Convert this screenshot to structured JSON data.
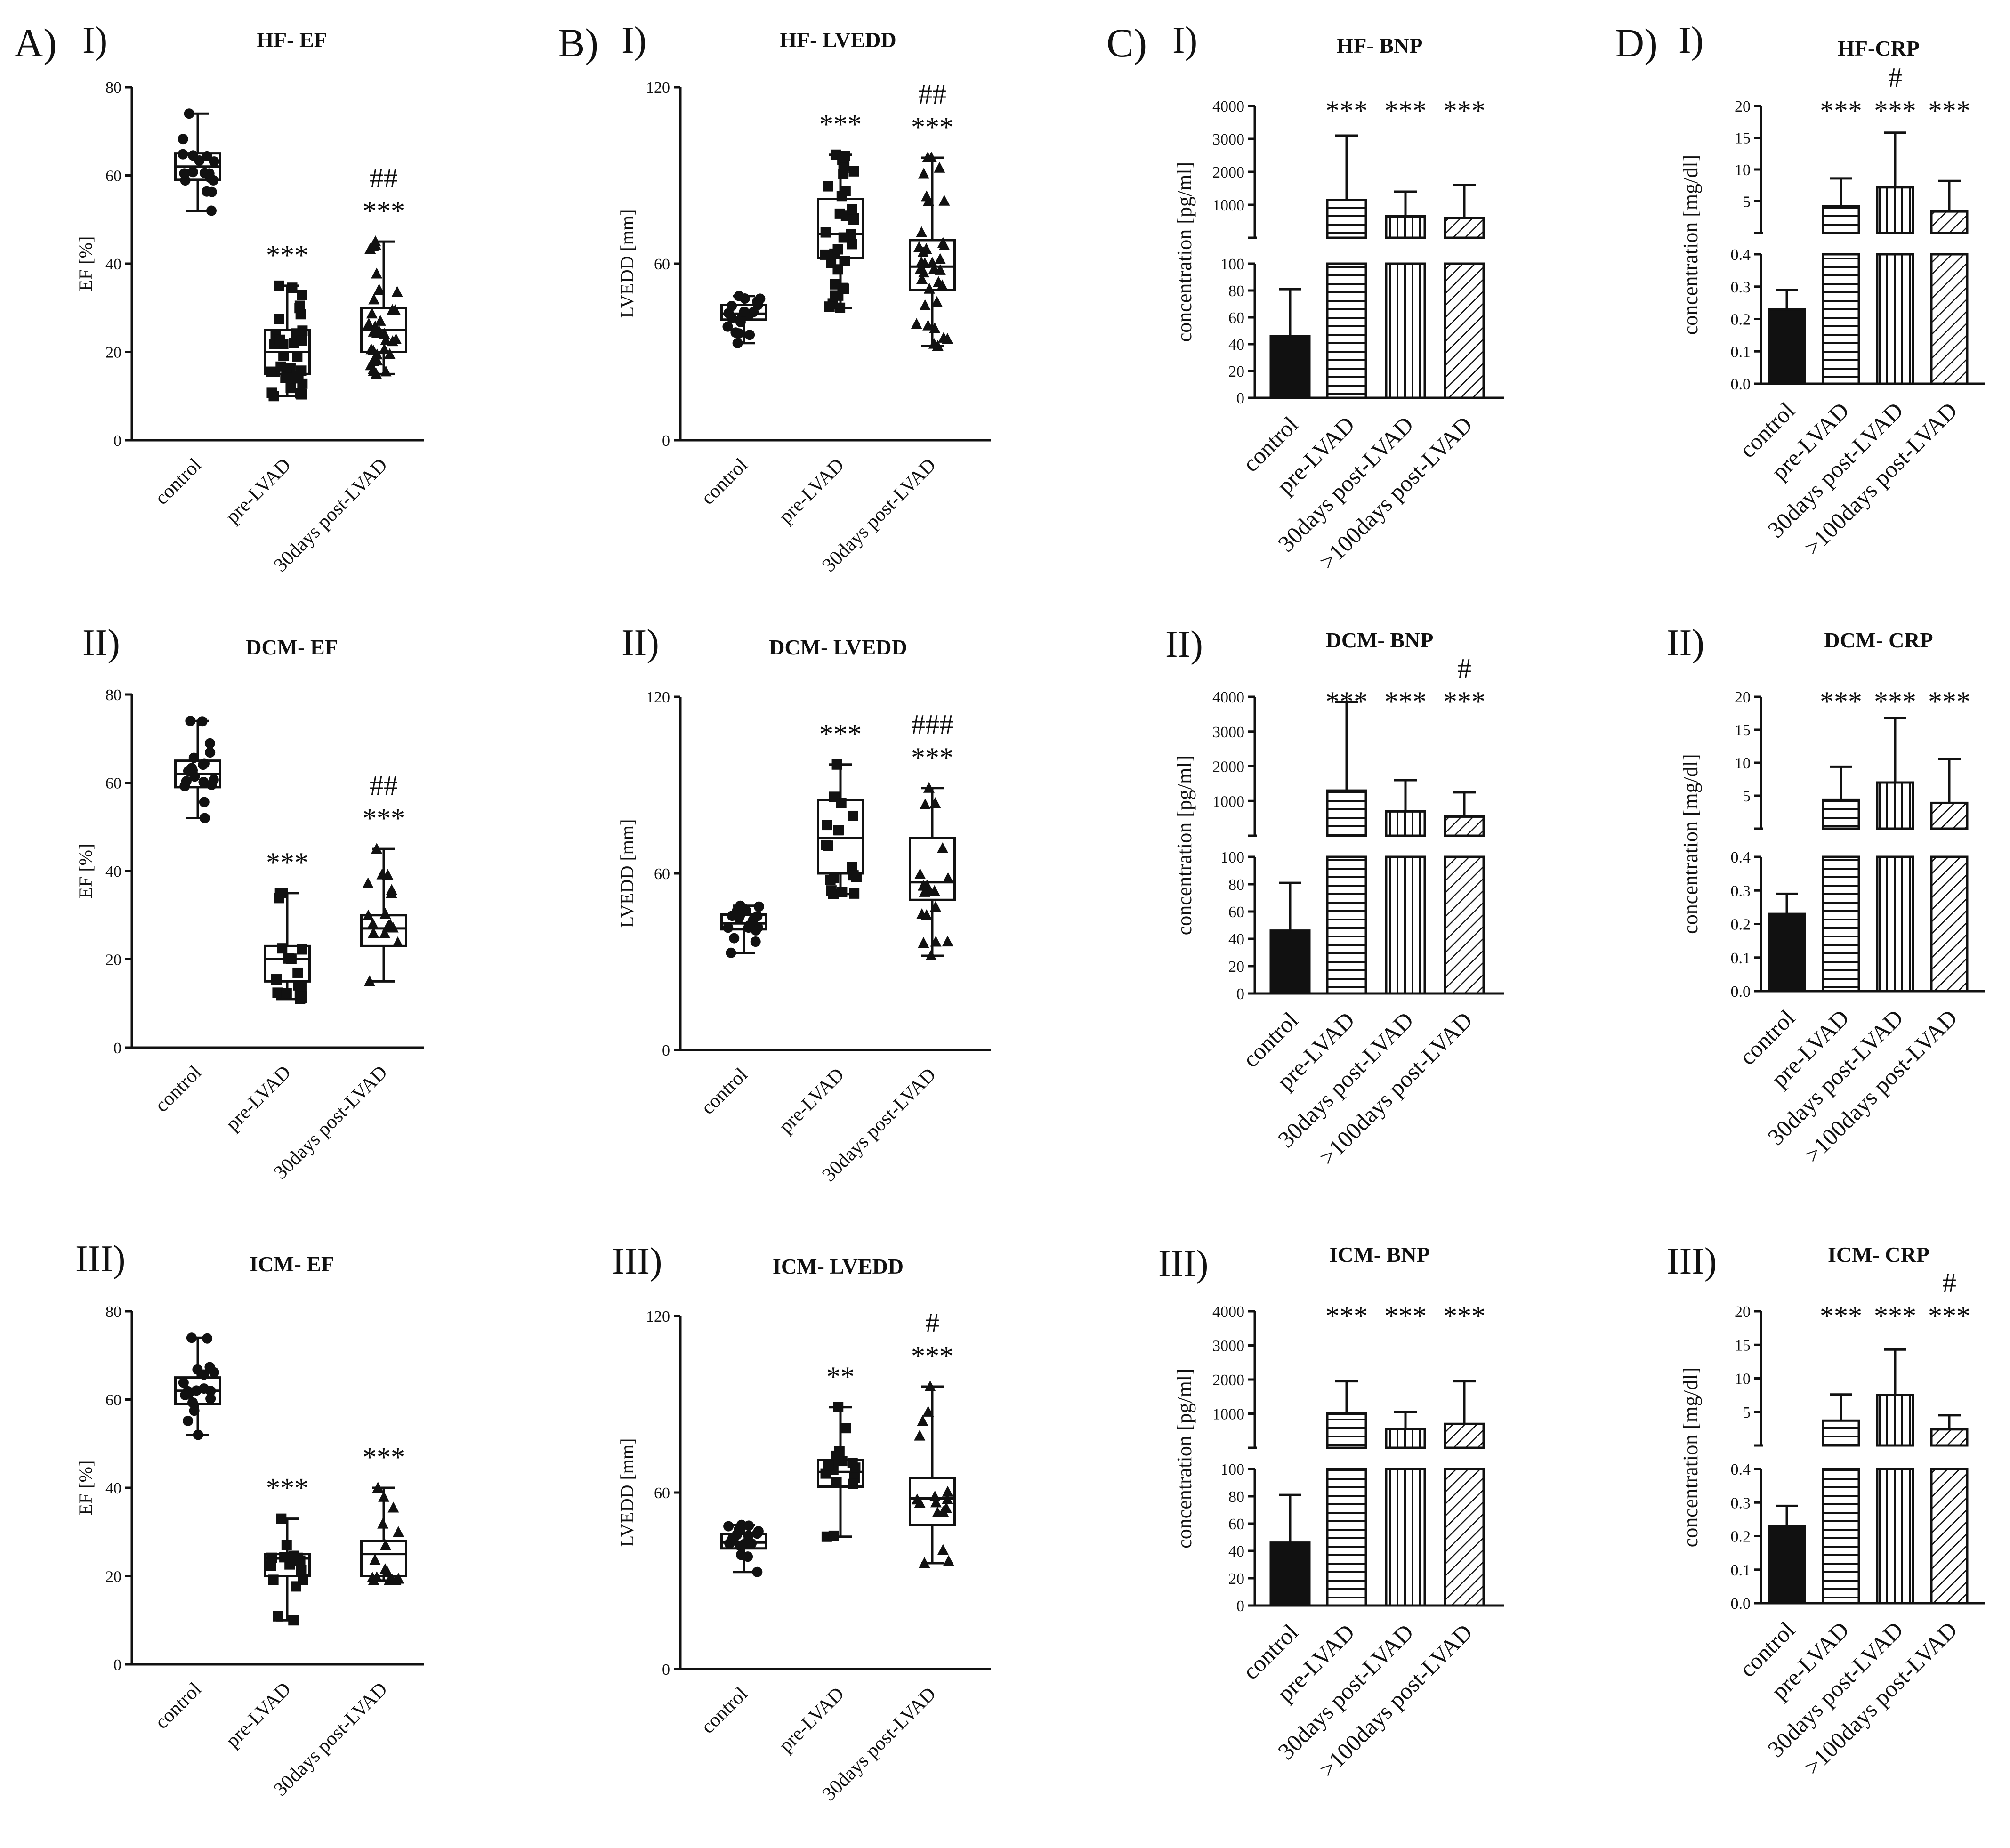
{
  "figure": {
    "panel_letters": [
      "A)",
      "B)",
      "C)",
      "D)"
    ],
    "x_categories_box": [
      "control",
      "pre-LVAD",
      "30days post-LVAD"
    ],
    "x_categories_bar": [
      "control",
      "pre-LVAD",
      "30days post-LVAD",
      ">100days post-LVAD"
    ]
  },
  "chart_data": [
    {
      "id": "A1",
      "type": "box",
      "panel": "A)",
      "roman": "I)",
      "title": "HF- EF",
      "ylabel": "EF [%]",
      "ylim": [
        0,
        80
      ],
      "yticks": [
        "0",
        "20",
        "40",
        "60",
        "80"
      ],
      "categories": [
        "control",
        "pre-LVAD",
        "30days post-LVAD"
      ],
      "series": [
        {
          "min": 52,
          "q1": 59,
          "median": 62,
          "q3": 65,
          "max": 74,
          "marker": "circle",
          "n": 18,
          "sig": "",
          "hash": ""
        },
        {
          "min": 10,
          "q1": 15,
          "median": 20,
          "q3": 25,
          "max": 35,
          "marker": "square",
          "n": 34,
          "sig": "***",
          "hash": ""
        },
        {
          "min": 15,
          "q1": 20,
          "median": 25,
          "q3": 30,
          "max": 45,
          "marker": "triangle",
          "n": 34,
          "sig": "***",
          "hash": "##"
        }
      ]
    },
    {
      "id": "A2",
      "type": "box",
      "panel": "",
      "roman": "II)",
      "title": "DCM- EF",
      "ylabel": "EF [%]",
      "ylim": [
        0,
        80
      ],
      "yticks": [
        "0",
        "20",
        "40",
        "60",
        "80"
      ],
      "categories": [
        "control",
        "pre-LVAD",
        "30days post-LVAD"
      ],
      "series": [
        {
          "min": 52,
          "q1": 59,
          "median": 62,
          "q3": 65,
          "max": 74,
          "marker": "circle",
          "n": 18,
          "sig": "",
          "hash": ""
        },
        {
          "min": 11,
          "q1": 15,
          "median": 20,
          "q3": 23,
          "max": 35,
          "marker": "square",
          "n": 18,
          "sig": "***",
          "hash": ""
        },
        {
          "min": 15,
          "q1": 23,
          "median": 27,
          "q3": 30,
          "max": 45,
          "marker": "triangle",
          "n": 18,
          "sig": "***",
          "hash": "##"
        }
      ]
    },
    {
      "id": "A3",
      "type": "box",
      "panel": "",
      "roman": "III)",
      "title": "ICM- EF",
      "ylabel": "EF [%]",
      "ylim": [
        0,
        80
      ],
      "yticks": [
        "0",
        "20",
        "40",
        "60",
        "80"
      ],
      "categories": [
        "control",
        "pre-LVAD",
        "30days post-LVAD"
      ],
      "series": [
        {
          "min": 52,
          "q1": 59,
          "median": 62,
          "q3": 65,
          "max": 74,
          "marker": "circle",
          "n": 18,
          "sig": "",
          "hash": ""
        },
        {
          "min": 10,
          "q1": 20,
          "median": 24,
          "q3": 25,
          "max": 33,
          "marker": "square",
          "n": 16,
          "sig": "***",
          "hash": ""
        },
        {
          "min": 19,
          "q1": 20,
          "median": 25,
          "q3": 28,
          "max": 40,
          "marker": "triangle",
          "n": 16,
          "sig": "***",
          "hash": ""
        }
      ]
    },
    {
      "id": "B1",
      "type": "box",
      "panel": "B)",
      "roman": "I)",
      "title": "HF- LVEDD",
      "ylabel": "LVEDD [mm]",
      "ylim": [
        0,
        120
      ],
      "yticks": [
        "0",
        "60",
        "120"
      ],
      "categories": [
        "control",
        "pre-LVAD",
        "30days post-LVAD"
      ],
      "series": [
        {
          "min": 33,
          "q1": 41,
          "median": 43,
          "q3": 46,
          "max": 49,
          "marker": "circle",
          "n": 18,
          "sig": "",
          "hash": ""
        },
        {
          "min": 45,
          "q1": 62,
          "median": 70,
          "q3": 82,
          "max": 97,
          "marker": "square",
          "n": 34,
          "sig": "***",
          "hash": ""
        },
        {
          "min": 32,
          "q1": 51,
          "median": 59,
          "q3": 68,
          "max": 96,
          "marker": "triangle",
          "n": 34,
          "sig": "***",
          "hash": "##"
        }
      ]
    },
    {
      "id": "B2",
      "type": "box",
      "panel": "",
      "roman": "II)",
      "title": "DCM- LVEDD",
      "ylabel": "LVEDD [mm]",
      "ylim": [
        0,
        120
      ],
      "yticks": [
        "0",
        "60",
        "120"
      ],
      "categories": [
        "control",
        "pre-LVAD",
        "30days post-LVAD"
      ],
      "series": [
        {
          "min": 33,
          "q1": 41,
          "median": 43,
          "q3": 46,
          "max": 49,
          "marker": "circle",
          "n": 18,
          "sig": "",
          "hash": ""
        },
        {
          "min": 53,
          "q1": 60,
          "median": 72,
          "q3": 85,
          "max": 97,
          "marker": "square",
          "n": 18,
          "sig": "***",
          "hash": ""
        },
        {
          "min": 32,
          "q1": 51,
          "median": 57,
          "q3": 72,
          "max": 89,
          "marker": "triangle",
          "n": 18,
          "sig": "***",
          "hash": "###"
        }
      ]
    },
    {
      "id": "B3",
      "type": "box",
      "panel": "",
      "roman": "III)",
      "title": "ICM- LVEDD",
      "ylabel": "LVEDD [mm]",
      "ylim": [
        0,
        120
      ],
      "yticks": [
        "0",
        "60",
        "120"
      ],
      "categories": [
        "control",
        "pre-LVAD",
        "30days post-LVAD"
      ],
      "series": [
        {
          "min": 33,
          "q1": 41,
          "median": 43,
          "q3": 46,
          "max": 49,
          "marker": "circle",
          "n": 18,
          "sig": "",
          "hash": ""
        },
        {
          "min": 45,
          "q1": 62,
          "median": 67,
          "q3": 71,
          "max": 89,
          "marker": "square",
          "n": 16,
          "sig": "**",
          "hash": ""
        },
        {
          "min": 36,
          "q1": 49,
          "median": 58,
          "q3": 65,
          "max": 96,
          "marker": "triangle",
          "n": 16,
          "sig": "***",
          "hash": "#"
        }
      ]
    },
    {
      "id": "C1",
      "type": "bar",
      "panel": "C)",
      "roman": "I)",
      "title": "HF- BNP",
      "ylabel": "concentration [pg/ml]",
      "lower": {
        "ylim": [
          0,
          100
        ],
        "yticks": [
          "0",
          "20",
          "40",
          "60",
          "80",
          "100"
        ]
      },
      "upper": {
        "ylim": [
          0,
          4000
        ],
        "yticks": [
          "1000",
          "2000",
          "3000",
          "4000"
        ]
      },
      "categories": [
        "control",
        "pre-LVAD",
        "30days post-LVAD",
        ">100days post-LVAD"
      ],
      "values": [
        46,
        1150,
        650,
        600
      ],
      "errors": [
        81,
        3100,
        1400,
        1600
      ],
      "fills": [
        "solid",
        "horizontal",
        "vertical",
        "diagonal"
      ],
      "sig": [
        "",
        "***",
        "***",
        "***"
      ],
      "hash": [
        "",
        "",
        "",
        ""
      ]
    },
    {
      "id": "C2",
      "type": "bar",
      "panel": "",
      "roman": "II)",
      "title": "DCM- BNP",
      "ylabel": "concentration [pg/ml]",
      "lower": {
        "ylim": [
          0,
          100
        ],
        "yticks": [
          "0",
          "20",
          "40",
          "60",
          "80",
          "100"
        ]
      },
      "upper": {
        "ylim": [
          0,
          4000
        ],
        "yticks": [
          "1000",
          "2000",
          "3000",
          "4000"
        ]
      },
      "categories": [
        "control",
        "pre-LVAD",
        "30days post-LVAD",
        ">100days post-LVAD"
      ],
      "values": [
        46,
        1300,
        700,
        550
      ],
      "errors": [
        81,
        3850,
        1600,
        1250
      ],
      "fills": [
        "solid",
        "horizontal",
        "vertical",
        "diagonal"
      ],
      "sig": [
        "",
        "***",
        "***",
        "***"
      ],
      "hash": [
        "",
        "",
        "",
        "#"
      ]
    },
    {
      "id": "C3",
      "type": "bar",
      "panel": "",
      "roman": "III)",
      "title": "ICM- BNP",
      "ylabel": "concentration [pg/ml]",
      "lower": {
        "ylim": [
          0,
          100
        ],
        "yticks": [
          "0",
          "20",
          "40",
          "60",
          "80",
          "100"
        ]
      },
      "upper": {
        "ylim": [
          0,
          4000
        ],
        "yticks": [
          "1000",
          "2000",
          "3000",
          "4000"
        ]
      },
      "categories": [
        "control",
        "pre-LVAD",
        "30days post-LVAD",
        ">100days post-LVAD"
      ],
      "values": [
        46,
        1000,
        550,
        700
      ],
      "errors": [
        81,
        1950,
        1050,
        1950
      ],
      "fills": [
        "solid",
        "horizontal",
        "vertical",
        "diagonal"
      ],
      "sig": [
        "",
        "***",
        "***",
        "***"
      ],
      "hash": [
        "",
        "",
        "",
        ""
      ]
    },
    {
      "id": "D1",
      "type": "bar",
      "panel": "D)",
      "roman": "I)",
      "title": "HF-CRP",
      "ylabel": "concentration [mg/dl]",
      "lower": {
        "ylim": [
          0,
          0.4
        ],
        "yticks": [
          "0.0",
          "0.1",
          "0.2",
          "0.3",
          "0.4"
        ]
      },
      "upper": {
        "ylim": [
          0,
          20
        ],
        "yticks": [
          "5",
          "10",
          "15",
          "20"
        ]
      },
      "categories": [
        "control",
        "pre-LVAD",
        "30days post-LVAD",
        ">100days post-LVAD"
      ],
      "values": [
        0.23,
        4.2,
        7.2,
        3.4
      ],
      "errors": [
        0.29,
        8.6,
        15.8,
        8.2
      ],
      "fills": [
        "solid",
        "horizontal",
        "vertical",
        "diagonal"
      ],
      "sig": [
        "",
        "***",
        "***",
        "***"
      ],
      "hash": [
        "",
        "",
        "#",
        ""
      ]
    },
    {
      "id": "D2",
      "type": "bar",
      "panel": "",
      "roman": "II)",
      "title": "DCM- CRP",
      "ylabel": "concentration [mg/dl]",
      "lower": {
        "ylim": [
          0,
          0.4
        ],
        "yticks": [
          "0.0",
          "0.1",
          "0.2",
          "0.3",
          "0.4"
        ]
      },
      "upper": {
        "ylim": [
          0,
          20
        ],
        "yticks": [
          "5",
          "10",
          "15",
          "20"
        ]
      },
      "categories": [
        "control",
        "pre-LVAD",
        "30days post-LVAD",
        ">100days post-LVAD"
      ],
      "values": [
        0.23,
        4.4,
        7.0,
        3.9
      ],
      "errors": [
        0.29,
        9.4,
        16.8,
        10.6
      ],
      "fills": [
        "solid",
        "horizontal",
        "vertical",
        "diagonal"
      ],
      "sig": [
        "",
        "***",
        "***",
        "***"
      ],
      "hash": [
        "",
        "",
        "",
        ""
      ]
    },
    {
      "id": "D3",
      "type": "bar",
      "panel": "",
      "roman": "III)",
      "title": "ICM- CRP",
      "ylabel": "concentration [mg/dl]",
      "lower": {
        "ylim": [
          0,
          0.4
        ],
        "yticks": [
          "0.0",
          "0.1",
          "0.2",
          "0.3",
          "0.4"
        ]
      },
      "upper": {
        "ylim": [
          0,
          20
        ],
        "yticks": [
          "5",
          "10",
          "15",
          "20"
        ]
      },
      "categories": [
        "control",
        "pre-LVAD",
        "30days post-LVAD",
        ">100days post-LVAD"
      ],
      "values": [
        0.23,
        3.7,
        7.5,
        2.4
      ],
      "errors": [
        0.29,
        7.6,
        14.3,
        4.5
      ],
      "fills": [
        "solid",
        "horizontal",
        "vertical",
        "diagonal"
      ],
      "sig": [
        "",
        "***",
        "***",
        "***"
      ],
      "hash": [
        "",
        "",
        "",
        "#"
      ]
    }
  ]
}
